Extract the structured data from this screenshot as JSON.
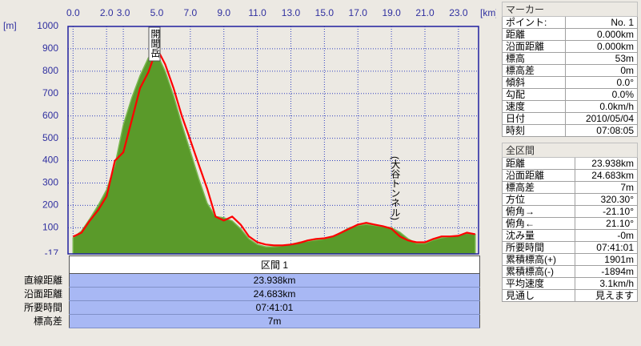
{
  "chart_data": {
    "type": "area-line",
    "y_label": "[m]",
    "x_label": "[km]",
    "annotations": [
      "開聞岳",
      "(大谷トンネル)"
    ],
    "x": [
      0,
      0.5,
      1,
      1.5,
      2,
      2.5,
      3,
      3.5,
      4,
      4.5,
      5,
      5.5,
      6,
      6.5,
      7,
      7.5,
      8,
      8.5,
      9,
      9.5,
      10,
      10.5,
      11,
      11.5,
      12,
      12.5,
      13,
      13.5,
      14,
      14.5,
      15,
      15.5,
      16,
      16.5,
      17,
      17.5,
      18,
      18.5,
      19,
      19.5,
      20,
      20.5,
      21,
      21.5,
      22,
      22.5,
      23,
      23.5,
      24
    ],
    "series": [
      {
        "name": "terrain",
        "color": "#5a9a2a",
        "values": [
          55,
          85,
          140,
          200,
          270,
          380,
          560,
          680,
          780,
          860,
          880,
          800,
          690,
          560,
          440,
          320,
          210,
          150,
          145,
          130,
          95,
          50,
          25,
          15,
          15,
          20,
          25,
          35,
          40,
          45,
          50,
          60,
          80,
          100,
          110,
          115,
          110,
          105,
          100,
          80,
          50,
          30,
          30,
          45,
          55,
          60,
          65,
          75,
          70
        ]
      },
      {
        "name": "track",
        "color": "#ff0000",
        "values": [
          60,
          78,
          132,
          179,
          240,
          400,
          437,
          580,
          724,
          796,
          903,
          831,
          724,
          598,
          491,
          383,
          276,
          150,
          132,
          150,
          114,
          61,
          35,
          25,
          21,
          21,
          25,
          32,
          43,
          50,
          53,
          61,
          78,
          96,
          114,
          122,
          114,
          107,
          96,
          61,
          43,
          35,
          35,
          50,
          61,
          61,
          64,
          78,
          71
        ]
      }
    ],
    "xlim": [
      -0.3,
      24.2
    ],
    "ylim": [
      -17,
      1000
    ],
    "xticks": [
      {
        "value": 0,
        "label": "0.0"
      },
      {
        "value": 2,
        "label": "2.0"
      },
      {
        "value": 3,
        "label": "3.0"
      },
      {
        "value": 5,
        "label": "5.0"
      },
      {
        "value": 7,
        "label": "7.0"
      },
      {
        "value": 9,
        "label": "9.0"
      },
      {
        "value": 11,
        "label": "11.0"
      },
      {
        "value": 13,
        "label": "13.0"
      },
      {
        "value": 15,
        "label": "15.0"
      },
      {
        "value": 17,
        "label": "17.0"
      },
      {
        "value": 19,
        "label": "19.0"
      },
      {
        "value": 21,
        "label": "21.0"
      },
      {
        "value": 23,
        "label": "23.0"
      }
    ],
    "yticks": [
      -17,
      100,
      200,
      300,
      400,
      500,
      600,
      700,
      800,
      900,
      1000
    ],
    "grid": true
  },
  "section_table": {
    "title": "区間 1",
    "rows": [
      [
        "直線距離",
        "23.938km"
      ],
      [
        "沿面距離",
        "24.683km"
      ],
      [
        "所要時間",
        "07:41:01"
      ],
      [
        "標高差",
        "7m"
      ]
    ]
  },
  "marker_panel": {
    "title": "マーカー",
    "rows": [
      [
        "ポイント:",
        "No. 1"
      ],
      [
        "距離",
        "0.000km"
      ],
      [
        "沿面距離",
        "0.000km"
      ],
      [
        "標高",
        "53m"
      ],
      [
        "標高差",
        "0m"
      ],
      [
        "傾斜",
        "0.0°"
      ],
      [
        "勾配",
        "0.0%"
      ],
      [
        "速度",
        "0.0km/h"
      ],
      [
        "日付",
        "2010/05/04"
      ],
      [
        "時刻",
        "07:08:05"
      ]
    ]
  },
  "summary_panel": {
    "title": "全区間",
    "rows": [
      [
        "距離",
        "23.938km"
      ],
      [
        "沿面距離",
        "24.683km"
      ],
      [
        "標高差",
        "7m"
      ],
      [
        "方位",
        "320.30°"
      ],
      [
        "俯角→",
        "-21.10°"
      ],
      [
        "俯角←",
        "21.10°"
      ],
      [
        "沈み量",
        "-0m"
      ],
      [
        "所要時間",
        "07:41:01"
      ],
      [
        "累積標高(+)",
        "1901m"
      ],
      [
        "累積標高(-)",
        "-1894m"
      ],
      [
        "平均速度",
        "3.1km/h"
      ],
      [
        "見通し",
        "見えます"
      ]
    ]
  }
}
